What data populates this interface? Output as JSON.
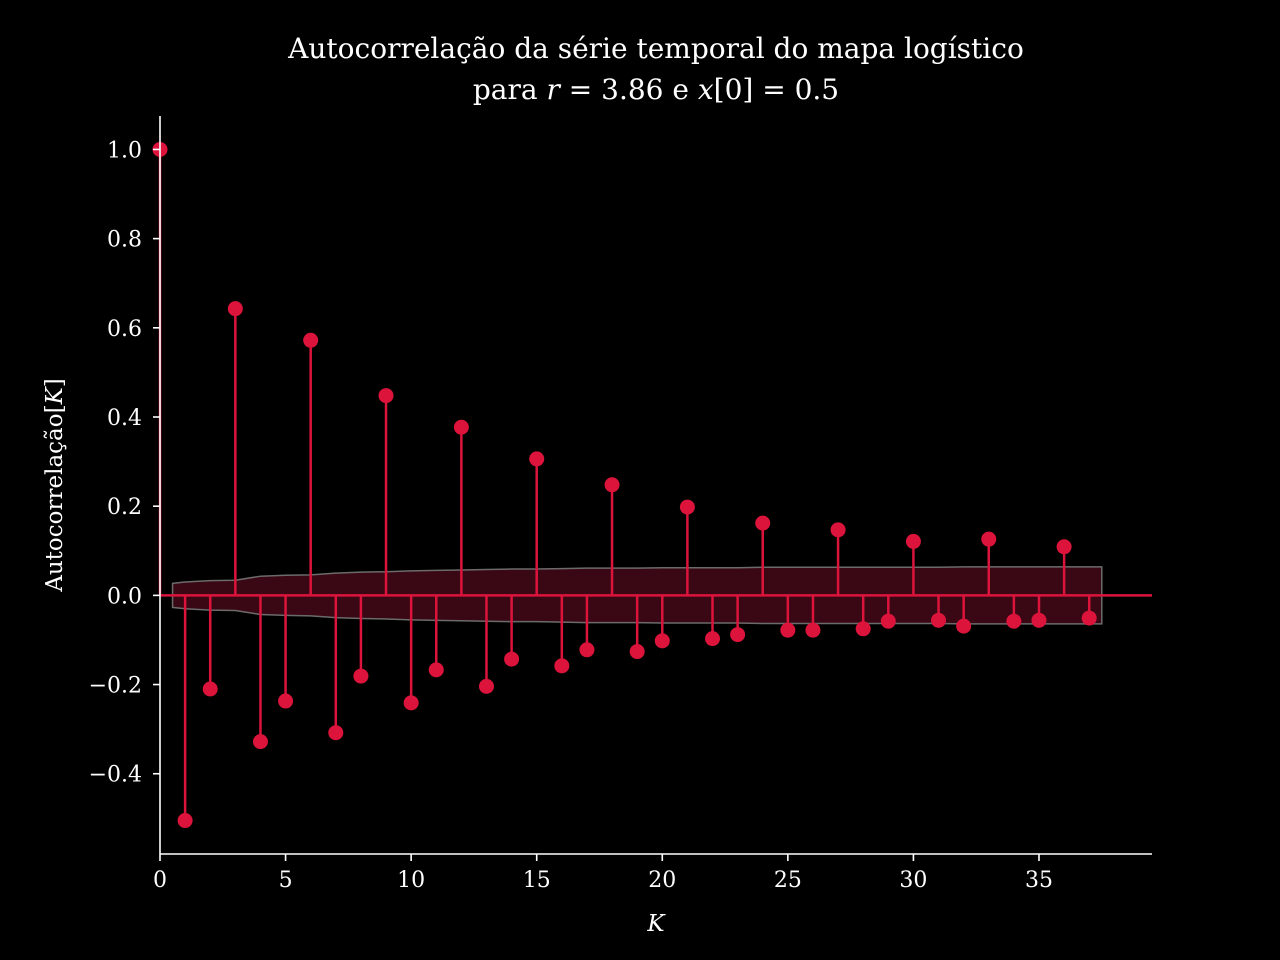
{
  "colors": {
    "background": "#000000",
    "foreground": "#ffffff",
    "stem": "#dc143c",
    "confidence_fill": "#3a0714",
    "confidence_edge": "#6b6b6b"
  },
  "chart_data": {
    "type": "stem",
    "title": {
      "line1": "Autocorrelação da série temporal do mapa logístico",
      "line2_prefix": "para ",
      "line2_r_var": "r",
      "line2_r_eq": " = 3.86 e ",
      "line2_x_var": "x",
      "line2_x_rest": "[0] = 0.5"
    },
    "xlabel": "K",
    "ylabel": {
      "text": "Autocorrelação[",
      "var": "K",
      "close": "]"
    },
    "xlim": [
      0,
      39.5
    ],
    "ylim": [
      -0.58,
      1.075
    ],
    "x_ticks": [
      0,
      5,
      10,
      15,
      20,
      25,
      30,
      35
    ],
    "x_tick_labels": [
      "0",
      "5",
      "10",
      "15",
      "20",
      "25",
      "30",
      "35"
    ],
    "y_ticks": [
      -0.4,
      -0.2,
      0.0,
      0.2,
      0.4,
      0.6,
      0.8,
      1.0
    ],
    "y_tick_labels": [
      "−0.4",
      "−0.2",
      "0.0",
      "0.2",
      "0.4",
      "0.6",
      "0.8",
      "1.0"
    ],
    "grid": false,
    "lags": [
      0,
      1,
      2,
      3,
      4,
      5,
      6,
      7,
      8,
      9,
      10,
      11,
      12,
      13,
      14,
      15,
      16,
      17,
      18,
      19,
      20,
      21,
      22,
      23,
      24,
      25,
      26,
      27,
      28,
      29,
      30,
      31,
      32,
      33,
      34,
      35,
      36,
      37
    ],
    "values": [
      1.0,
      -0.505,
      -0.21,
      0.643,
      -0.328,
      -0.237,
      0.572,
      -0.308,
      -0.181,
      0.448,
      -0.241,
      -0.167,
      0.377,
      -0.204,
      -0.143,
      0.306,
      -0.158,
      -0.122,
      0.248,
      -0.126,
      -0.102,
      0.198,
      -0.097,
      -0.088,
      0.162,
      -0.078,
      -0.078,
      0.147,
      -0.075,
      -0.058,
      0.121,
      -0.056,
      -0.069,
      0.126,
      -0.058,
      -0.056,
      0.109,
      -0.051
    ],
    "confidence_band": {
      "x": [
        0.5,
        1,
        2,
        3,
        4,
        5,
        6,
        7,
        8,
        9,
        10,
        11,
        12,
        13,
        14,
        15,
        16,
        17,
        18,
        19,
        20,
        21,
        22,
        23,
        24,
        25,
        26,
        27,
        28,
        29,
        30,
        31,
        32,
        33,
        34,
        35,
        36,
        37,
        37.5
      ],
      "upper": [
        0.027,
        0.03,
        0.033,
        0.034,
        0.043,
        0.045,
        0.046,
        0.05,
        0.052,
        0.053,
        0.055,
        0.056,
        0.057,
        0.058,
        0.059,
        0.059,
        0.06,
        0.061,
        0.061,
        0.061,
        0.062,
        0.062,
        0.062,
        0.062,
        0.063,
        0.063,
        0.063,
        0.063,
        0.063,
        0.063,
        0.063,
        0.063,
        0.064,
        0.064,
        0.064,
        0.064,
        0.064,
        0.064,
        0.064
      ]
    }
  }
}
